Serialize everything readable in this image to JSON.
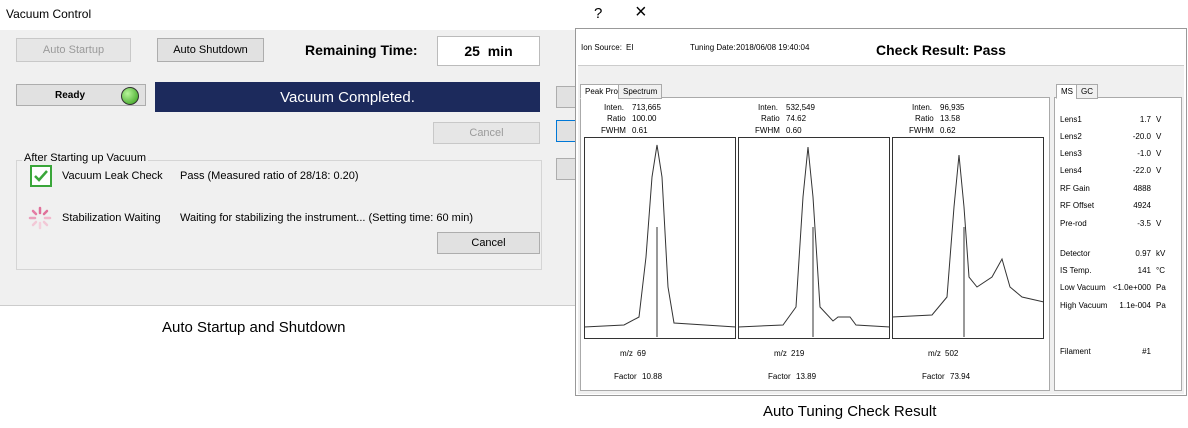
{
  "vacuum_control": {
    "title": "Vacuum Control",
    "help": "?",
    "close": "×",
    "auto_startup": "Auto Startup",
    "auto_shutdown": "Auto Shutdown",
    "remaining_time_label": "Remaining Time:",
    "remaining_time": "25  min",
    "status": "Ready",
    "banner": "Vacuum Completed.",
    "cancel_top": "Cancel",
    "group_title": "After Starting up Vacuum",
    "leak_check": {
      "label": "Vacuum Leak Check",
      "result": "Pass (Measured ratio of 28/18: 0.20)"
    },
    "stabilization": {
      "label": "Stabilization Waiting",
      "result": "Waiting for stabilizing the instrument... (Setting time: 60 min)"
    },
    "cancel_bottom": "Cancel"
  },
  "caption_left": "Auto Startup and Shutdown",
  "tuning": {
    "ion_source_label": "Ion Source:",
    "ion_source": "EI",
    "tuning_date_label": "Tuning Date:",
    "tuning_date": "2018/06/08 19:40:04",
    "check_result": "Check Result: Pass",
    "tabs": [
      "Peak Profile",
      "Spectrum"
    ],
    "labels": {
      "inten": "Inten.",
      "ratio": "Ratio",
      "fwhm": "FWHM",
      "mz": "m/z",
      "factor": "Factor"
    },
    "peaks": [
      {
        "inten": "713,665",
        "ratio": "100.00",
        "fwhm": "0.61",
        "mz": "69",
        "factor": "10.88"
      },
      {
        "inten": "532,549",
        "ratio": "74.62",
        "fwhm": "0.60",
        "mz": "219",
        "factor": "13.89"
      },
      {
        "inten": "96,935",
        "ratio": "13.58",
        "fwhm": "0.62",
        "mz": "502",
        "factor": "73.94"
      }
    ],
    "side_tabs": [
      "MS",
      "GC"
    ],
    "params": [
      {
        "name": "Lens1",
        "value": "1.7",
        "unit": "V"
      },
      {
        "name": "Lens2",
        "value": "-20.0",
        "unit": "V"
      },
      {
        "name": "Lens3",
        "value": "-1.0",
        "unit": "V"
      },
      {
        "name": "Lens4",
        "value": "-22.0",
        "unit": "V"
      },
      {
        "name": "RF Gain",
        "value": "4888"
      },
      {
        "name": "RF Offset",
        "value": "4924"
      },
      {
        "name": "Pre-rod",
        "value": "-3.5",
        "unit": "V"
      },
      {
        "name": "Detector",
        "value": "0.97",
        "unit": "kV"
      },
      {
        "name": "IS Temp.",
        "value": "141",
        "unit": "°C"
      },
      {
        "name": "Low Vacuum",
        "value": "<1.0e+000",
        "unit": "Pa"
      },
      {
        "name": "High Vacuum",
        "value": "1.1e-004",
        "unit": "Pa"
      },
      {
        "name": "Filament",
        "value": "#1"
      }
    ]
  },
  "caption_right": "Auto Tuning Check Result"
}
